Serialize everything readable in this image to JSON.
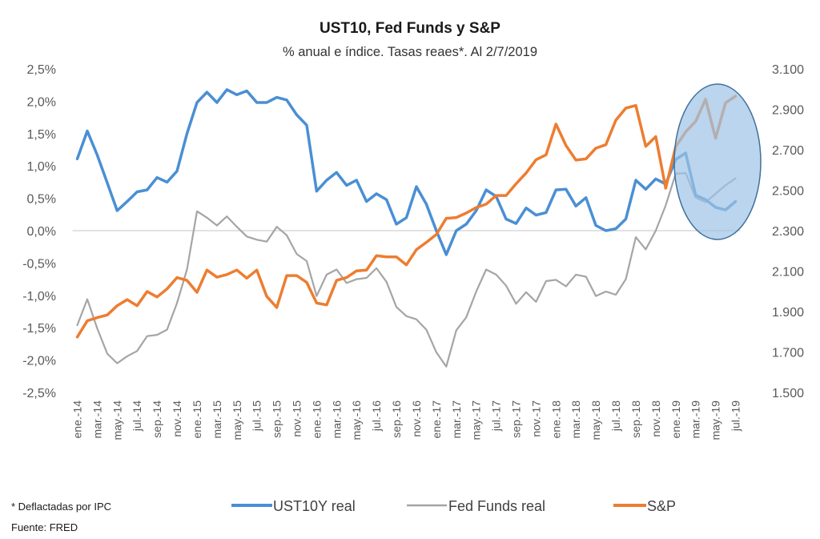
{
  "chart_data": {
    "type": "line",
    "title": "UST10, Fed Funds y S&P",
    "subtitle": "% anual e índice. Tasas reaes*. Al 2/7/2019",
    "xlabel": "",
    "ylabel_left": "",
    "ylabel_right": "",
    "x_tick_labels": [
      "ene.-14",
      "mar.-14",
      "may.-14",
      "jul.-14",
      "sep.-14",
      "nov.-14",
      "ene.-15",
      "mar.-15",
      "may.-15",
      "jul.-15",
      "sep.-15",
      "nov.-15",
      "ene.-16",
      "mar.-16",
      "may.-16",
      "jul.-16",
      "sep.-16",
      "nov.-16",
      "ene.-17",
      "mar.-17",
      "may.-17",
      "jul.-17",
      "sep.-17",
      "nov.-17",
      "ene.-18",
      "mar.-18",
      "may.-18",
      "jul.-18",
      "sep.-18",
      "nov.-18",
      "ene.-19",
      "mar.-19",
      "may.-19",
      "jul.-19"
    ],
    "x_tick_every_months": 2,
    "n_points": 67,
    "y_left": {
      "range": [
        -2.5,
        2.5
      ],
      "ticks": [
        2.5,
        2.0,
        1.5,
        1.0,
        0.5,
        0.0,
        -0.5,
        -1.0,
        -1.5,
        -2.0,
        -2.5
      ],
      "tick_labels": [
        "2,5%",
        "2,0%",
        "1,5%",
        "1,0%",
        "0,5%",
        "0,0%",
        "-0,5%",
        "-1,0%",
        "-1,5%",
        "-2,0%",
        "-2,5%"
      ],
      "zero_line": true
    },
    "y_right": {
      "range": [
        1500,
        3100
      ],
      "ticks": [
        3100,
        2900,
        2700,
        2500,
        2300,
        2100,
        1900,
        1700,
        1500
      ],
      "tick_labels": [
        "3.100",
        "2.900",
        "2.700",
        "2.500",
        "2.300",
        "2.100",
        "1.900",
        "1.700",
        "1.500"
      ]
    },
    "grid": false,
    "legend_position": "bottom",
    "series": [
      {
        "name": "UST10Y real",
        "axis": "left",
        "color": "#4a8fd4",
        "values": [
          1.11,
          1.54,
          1.17,
          0.74,
          0.31,
          0.45,
          0.6,
          0.63,
          0.82,
          0.75,
          0.92,
          1.5,
          1.98,
          2.14,
          1.98,
          2.18,
          2.1,
          2.16,
          1.98,
          1.98,
          2.06,
          2.02,
          1.79,
          1.63,
          0.61,
          0.78,
          0.9,
          0.7,
          0.78,
          0.45,
          0.57,
          0.48,
          0.1,
          0.2,
          0.68,
          0.41,
          0.0,
          -0.37,
          0.0,
          0.1,
          0.31,
          0.63,
          0.53,
          0.18,
          0.11,
          0.35,
          0.24,
          0.28,
          0.63,
          0.64,
          0.38,
          0.51,
          0.08,
          0.0,
          0.03,
          0.18,
          0.78,
          0.64,
          0.8,
          0.72,
          1.1,
          1.2,
          0.55,
          0.48,
          0.36,
          0.32,
          0.45
        ]
      },
      {
        "name": "Fed Funds real",
        "axis": "left",
        "color": "#a5a5a5",
        "values": [
          -1.46,
          -1.06,
          -1.51,
          -1.9,
          -2.05,
          -1.94,
          -1.86,
          -1.63,
          -1.61,
          -1.53,
          -1.12,
          -0.6,
          0.3,
          0.2,
          0.08,
          0.22,
          0.06,
          -0.09,
          -0.14,
          -0.17,
          0.06,
          -0.07,
          -0.36,
          -0.47,
          -1.01,
          -0.68,
          -0.6,
          -0.81,
          -0.75,
          -0.73,
          -0.58,
          -0.79,
          -1.18,
          -1.32,
          -1.37,
          -1.53,
          -1.88,
          -2.1,
          -1.54,
          -1.34,
          -0.94,
          -0.6,
          -0.68,
          -0.85,
          -1.13,
          -0.95,
          -1.1,
          -0.78,
          -0.76,
          -0.86,
          -0.68,
          -0.71,
          -1.01,
          -0.94,
          -0.99,
          -0.75,
          -0.1,
          -0.29,
          0.0,
          0.39,
          0.88,
          0.89,
          0.51,
          0.44,
          0.57,
          0.7,
          0.81
        ]
      },
      {
        "name": "S&P",
        "axis": "right",
        "color": "#ed7d31",
        "values": [
          1774,
          1854,
          1870,
          1883,
          1929,
          1959,
          1929,
          1999,
          1972,
          2012,
          2068,
          2054,
          1995,
          2105,
          2070,
          2083,
          2105,
          2065,
          2105,
          1975,
          1920,
          2078,
          2078,
          2044,
          1942,
          1933,
          2054,
          2068,
          2101,
          2105,
          2176,
          2170,
          2170,
          2131,
          2206,
          2242,
          2281,
          2361,
          2365,
          2387,
          2414,
          2431,
          2474,
          2474,
          2532,
          2585,
          2651,
          2675,
          2827,
          2721,
          2649,
          2655,
          2708,
          2725,
          2846,
          2906,
          2919,
          2717,
          2765,
          2510,
          2715,
          2788,
          2840,
          2950,
          2757,
          2932,
          2965
        ]
      }
    ],
    "annotations": [
      {
        "type": "highlight-ellipse",
        "covers_months": [
          "ene.-19",
          "jul.-19"
        ],
        "color": "#9dc3e6"
      }
    ],
    "notes": [
      "* Deflactadas por IPC",
      "Fuente: FRED"
    ]
  }
}
